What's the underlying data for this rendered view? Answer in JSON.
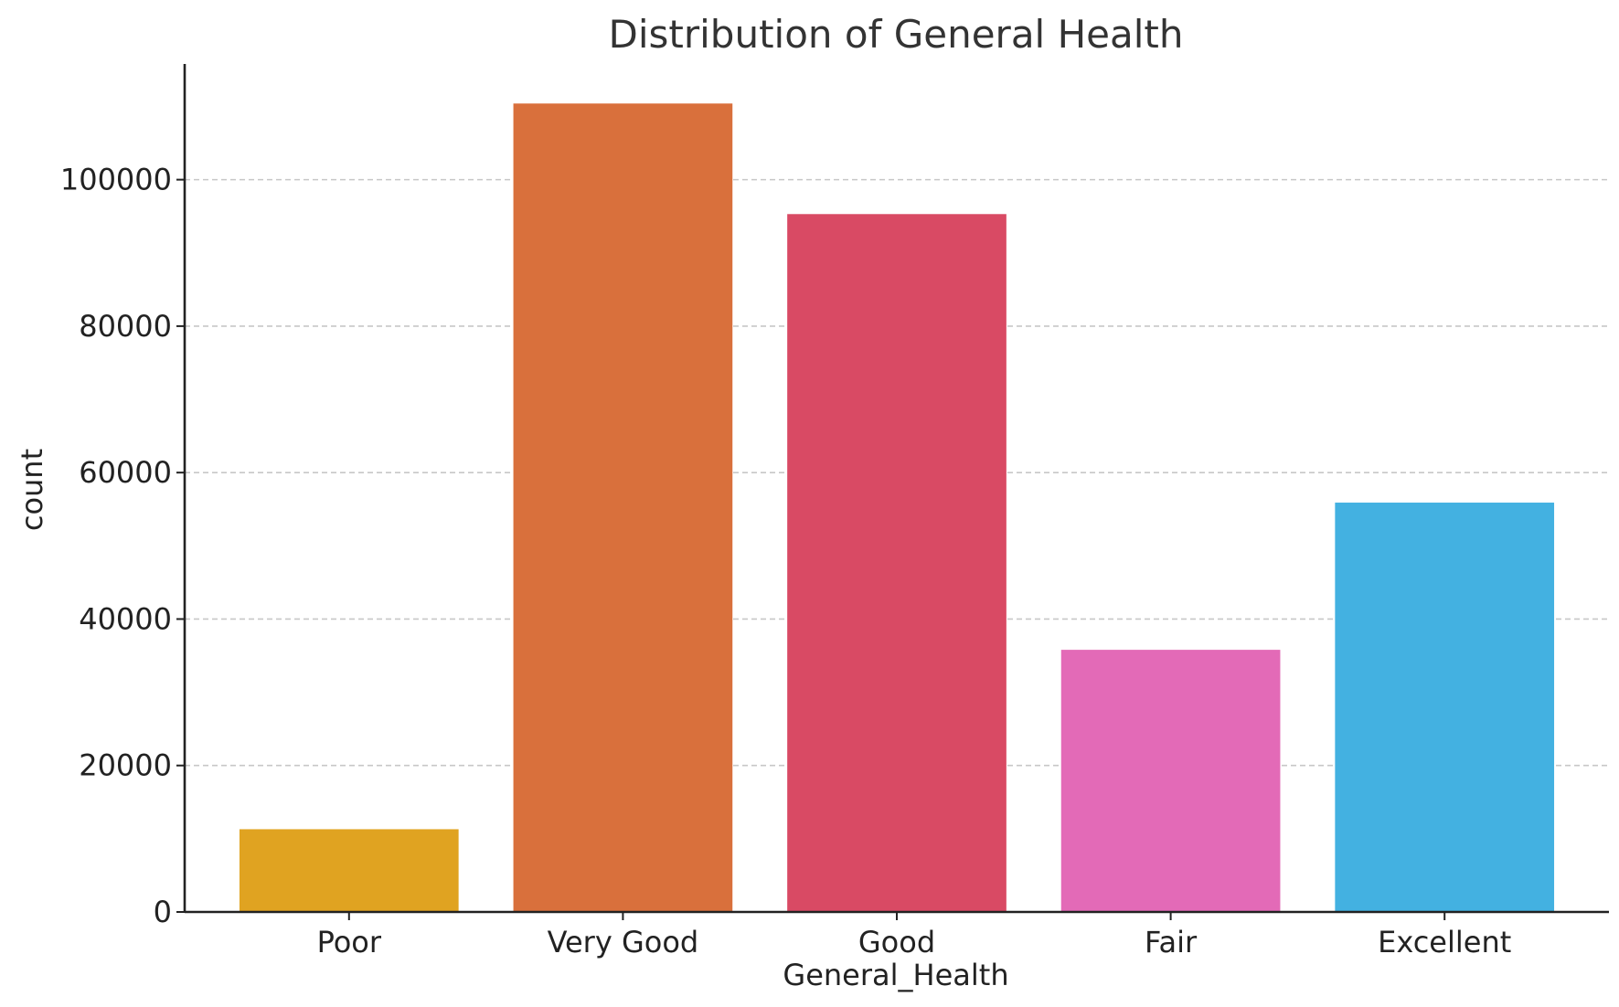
{
  "chart_data": {
    "type": "bar",
    "title": "Distribution of General Health",
    "xlabel": "General_Health",
    "ylabel": "count",
    "categories": [
      "Poor",
      "Very Good",
      "Good",
      "Fair",
      "Excellent"
    ],
    "values": [
      11300,
      110400,
      95300,
      35800,
      55900
    ],
    "colors": [
      "#E0A321",
      "#D9703C",
      "#D94A64",
      "#E36AB7",
      "#43B1E1"
    ],
    "yticks": [
      0,
      20000,
      40000,
      60000,
      80000,
      100000
    ],
    "ytick_labels": [
      "0",
      "20000",
      "40000",
      "60000",
      "80000",
      "100000"
    ],
    "ylim": [
      0,
      115800
    ],
    "grid": true,
    "grid_axis": "y",
    "legend": "none"
  }
}
